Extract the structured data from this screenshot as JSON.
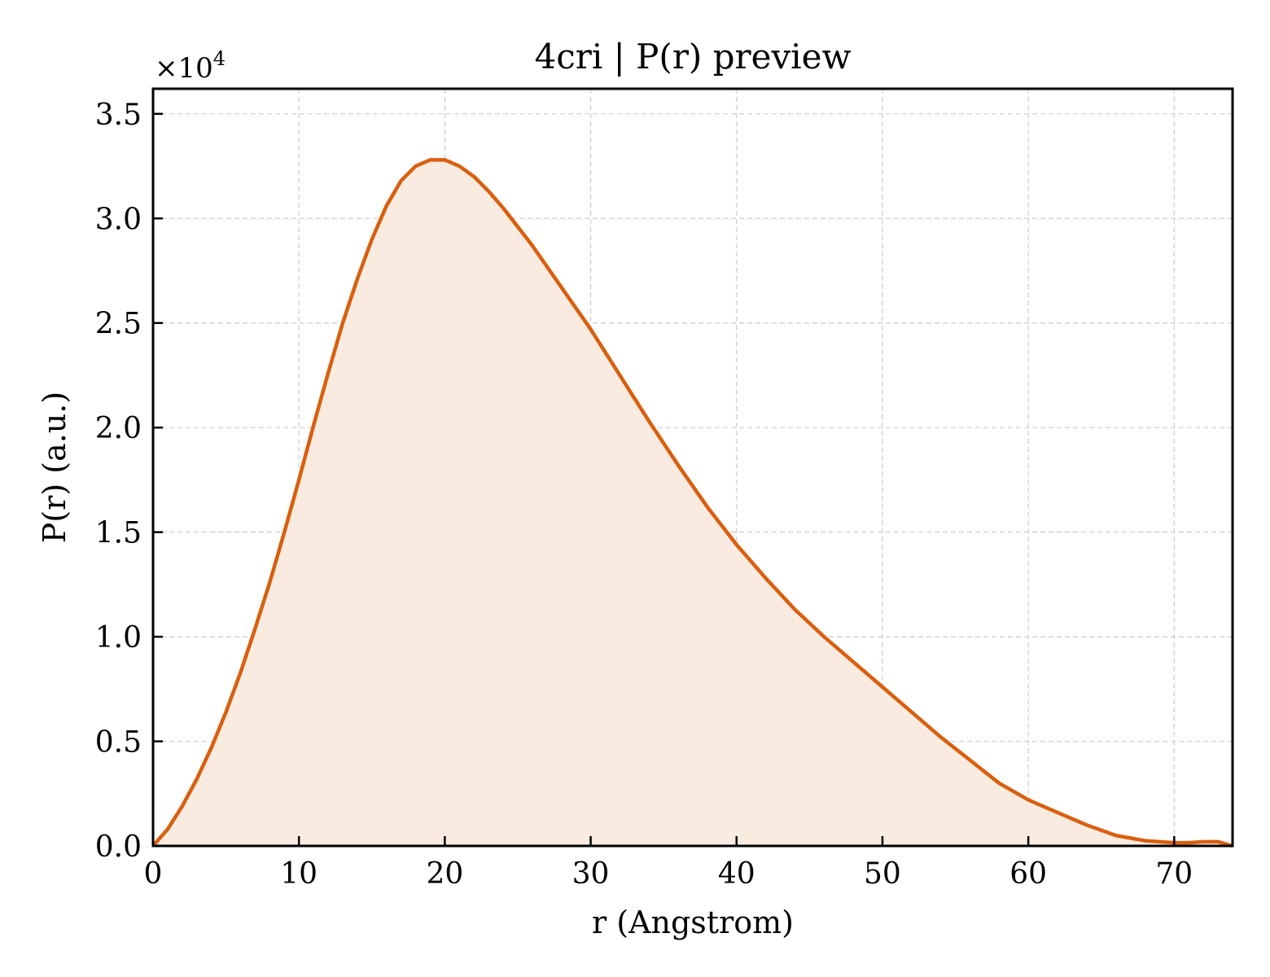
{
  "chart_data": {
    "type": "area",
    "title": "4cri | P(r) preview",
    "xlabel": "r (Angstrom)",
    "ylabel": "P(r) (a.u.)",
    "y_multiplier": "×10",
    "y_multiplier_exponent": "4",
    "xlim": [
      0,
      74
    ],
    "ylim": [
      0,
      3.62
    ],
    "y_scale_factor": 10000,
    "xticks": [
      0,
      10,
      20,
      30,
      40,
      50,
      60,
      70
    ],
    "xtick_labels": [
      "0",
      "10",
      "20",
      "30",
      "40",
      "50",
      "60",
      "70"
    ],
    "yticks": [
      0,
      0.5,
      1.0,
      1.5,
      2.0,
      2.5,
      3.0,
      3.5
    ],
    "ytick_labels": [
      "0.0",
      "0.5",
      "1.0",
      "1.5",
      "2.0",
      "2.5",
      "3.0",
      "3.5"
    ],
    "grid": true,
    "line_color": "#d95f0e",
    "fill_color": "#f9ebe0",
    "series": [
      {
        "x": [
          0,
          1,
          2,
          3,
          4,
          5,
          6,
          7,
          8,
          9,
          10,
          11,
          12,
          13,
          14,
          15,
          16,
          17,
          18,
          19,
          20,
          21,
          22,
          23,
          24,
          25,
          26,
          27,
          28,
          29,
          30,
          32,
          34,
          36,
          38,
          40,
          42,
          44,
          46,
          48,
          50,
          52,
          54,
          56,
          58,
          60,
          62,
          64,
          66,
          68,
          69,
          70,
          71,
          72,
          73,
          74
        ],
        "y": [
          0.0,
          0.08,
          0.19,
          0.32,
          0.47,
          0.64,
          0.83,
          1.04,
          1.26,
          1.5,
          1.75,
          2.01,
          2.26,
          2.5,
          2.71,
          2.9,
          3.06,
          3.18,
          3.25,
          3.28,
          3.28,
          3.25,
          3.2,
          3.13,
          3.05,
          2.96,
          2.87,
          2.77,
          2.67,
          2.57,
          2.47,
          2.25,
          2.03,
          1.82,
          1.62,
          1.44,
          1.28,
          1.13,
          1.0,
          0.88,
          0.76,
          0.64,
          0.52,
          0.41,
          0.3,
          0.22,
          0.16,
          0.1,
          0.05,
          0.025,
          0.02,
          0.015,
          0.015,
          0.02,
          0.02,
          0.0
        ]
      }
    ]
  }
}
